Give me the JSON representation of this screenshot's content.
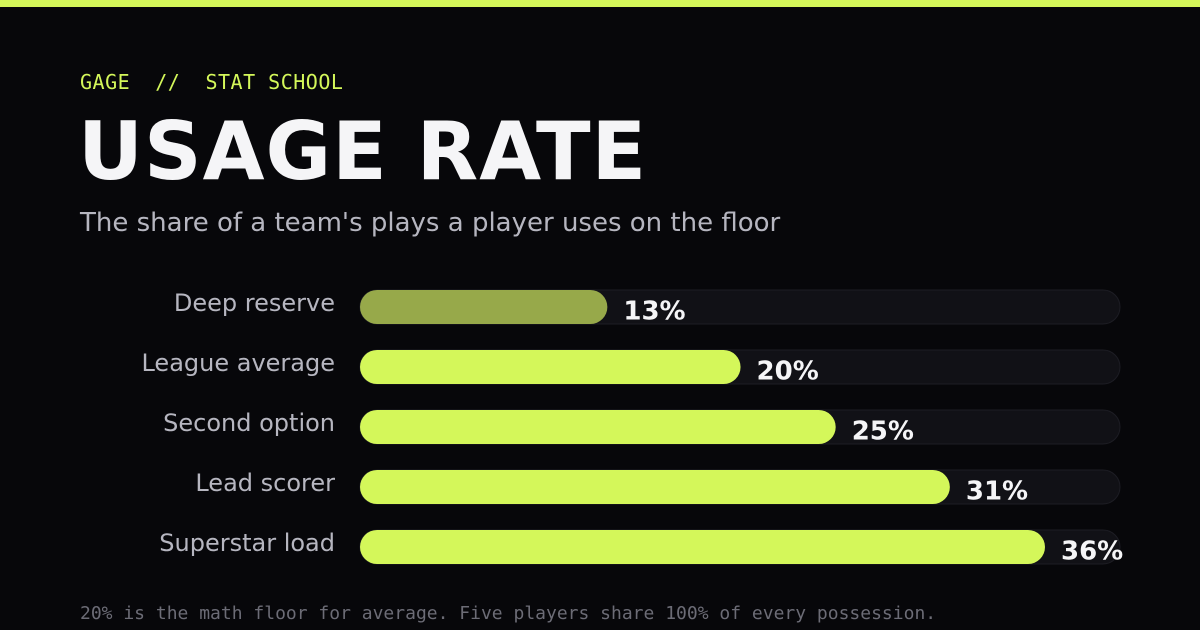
{
  "colors": {
    "accent": "#d4f75a",
    "accent_muted": "#97a94a",
    "track": "#111116",
    "track_border": "#1d1d24",
    "background": "#07070a"
  },
  "header": {
    "kicker_brand": "GAGE",
    "kicker_separator": "//",
    "kicker_section": "STAT SCHOOL",
    "title": "USAGE RATE",
    "subtitle": "The share of a team's plays a player uses on the floor"
  },
  "chart_data": {
    "type": "bar",
    "orientation": "horizontal",
    "categories": [
      "Deep reserve",
      "League average",
      "Second option",
      "Lead scorer",
      "Superstar load"
    ],
    "values": [
      13,
      20,
      25,
      31,
      36
    ],
    "value_labels": [
      "13%",
      "20%",
      "25%",
      "31%",
      "36%"
    ],
    "xlim": [
      0,
      36
    ],
    "grid": false,
    "legend": "none"
  },
  "footnote": "20% is the math floor for average. Five players share 100% of every possession."
}
